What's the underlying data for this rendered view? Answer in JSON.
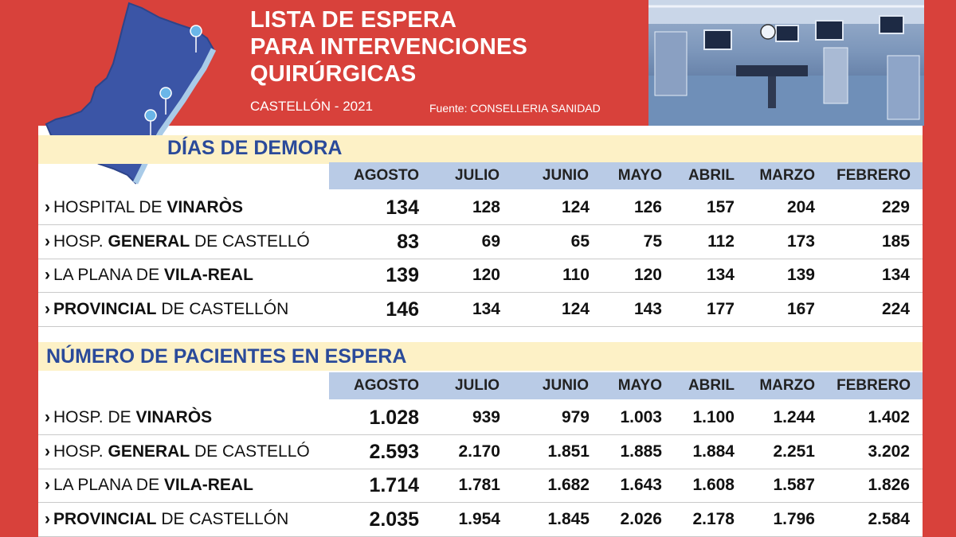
{
  "header": {
    "title_lines": [
      "LISTA DE ESPERA",
      "PARA INTERVENCIONES",
      "QUIRÚRGICAS"
    ],
    "subtitle": "CASTELLÓN - 2021",
    "source": "Fuente: CONSELLERIA SANIDAD"
  },
  "months": [
    "AGOSTO",
    "JULIO",
    "JUNIO",
    "MAYO",
    "ABRIL",
    "MARZO",
    "FEBRERO"
  ],
  "delay": {
    "title": "DÍAS DE DEMORA",
    "rows": [
      {
        "pre": "HOSPITAL DE ",
        "bold": "VINARÒS",
        "post": "",
        "values": [
          "134",
          "128",
          "124",
          "126",
          "157",
          "204",
          "229"
        ]
      },
      {
        "pre": "HOSP. ",
        "bold": "GENERAL",
        "post": " DE CASTELLÓ",
        "values": [
          "83",
          "69",
          "65",
          "75",
          "112",
          "173",
          "185"
        ]
      },
      {
        "pre": "LA PLANA DE ",
        "bold": "VILA-REAL",
        "post": "",
        "values": [
          "139",
          "120",
          "110",
          "120",
          "134",
          "139",
          "134"
        ]
      },
      {
        "pre": "",
        "bold": "PROVINCIAL",
        "post": " DE CASTELLÓN",
        "values": [
          "146",
          "134",
          "124",
          "143",
          "177",
          "167",
          "224"
        ]
      }
    ]
  },
  "patients": {
    "title": "NÚMERO DE PACIENTES EN ESPERA",
    "rows": [
      {
        "pre": "HOSP. DE ",
        "bold": "VINARÒS",
        "post": "",
        "values": [
          "1.028",
          "939",
          "979",
          "1.003",
          "1.100",
          "1.244",
          "1.402"
        ]
      },
      {
        "pre": "HOSP. ",
        "bold": "GENERAL",
        "post": " DE CASTELLÓ",
        "values": [
          "2.593",
          "2.170",
          "1.851",
          "1.885",
          "1.884",
          "2.251",
          "3.202"
        ]
      },
      {
        "pre": "LA PLANA DE ",
        "bold": "VILA-REAL",
        "post": "",
        "values": [
          "1.714",
          "1.781",
          "1.682",
          "1.643",
          "1.608",
          "1.587",
          "1.826"
        ]
      },
      {
        "pre": "",
        "bold": "PROVINCIAL",
        "post": " DE CASTELLÓN",
        "values": [
          "2.035",
          "1.954",
          "1.845",
          "2.026",
          "2.178",
          "1.796",
          "2.584"
        ]
      }
    ]
  },
  "colors": {
    "background": "#d8413b",
    "section_title": "#2a4a9a",
    "section_bar": "#fdf1c6",
    "month_bar": "#b9cbe6",
    "map": "#3b55a6"
  },
  "icons": {
    "map": "castellon-province-map-icon",
    "pin": "hospital-pin-icon",
    "photo": "operating-room-photo"
  }
}
